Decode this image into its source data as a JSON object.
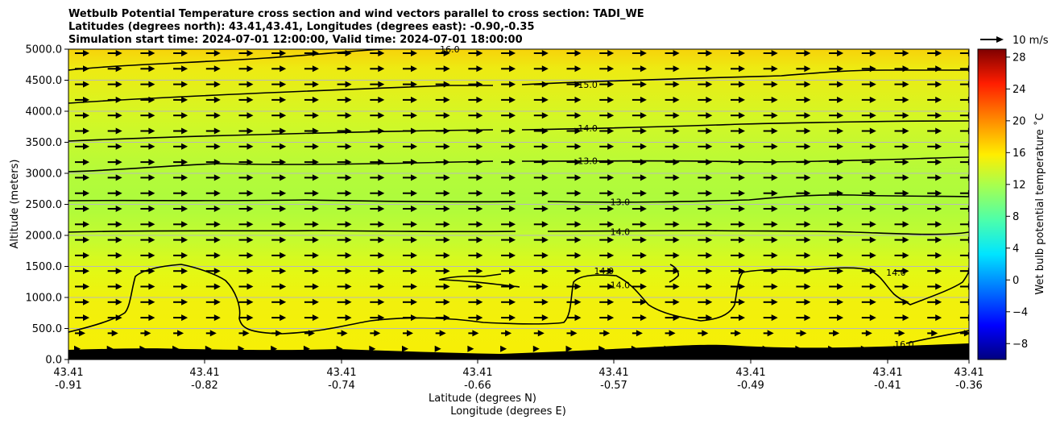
{
  "chart_data": {
    "type": "heatmap",
    "title_lines": [
      "Wetbulb Potential Temperature cross section and wind vectors parallel to cross section: TADI_WE",
      "Latitudes (degrees north): 43.41,43.41, Longitudes (degrees east): -0.90,-0.35",
      "Simulation start time: 2024-07-01 12:00:00, Valid time: 2024-07-01 18:00:00"
    ],
    "ylabel": "Altitude (meters)",
    "xlabel_lines": [
      "Latitude (degrees N)",
      "Longitude (degrees E)"
    ],
    "ylim": [
      0,
      5000
    ],
    "y_ticks": [
      "0.0",
      "500.0",
      "1000.0",
      "1500.0",
      "2000.0",
      "2500.0",
      "3000.0",
      "3500.0",
      "4000.0",
      "4500.0",
      "5000.0"
    ],
    "x_ticks": [
      {
        "lat": "43.41",
        "lon": "-0.91"
      },
      {
        "lat": "43.41",
        "lon": "-0.82"
      },
      {
        "lat": "43.41",
        "lon": "-0.74"
      },
      {
        "lat": "43.41",
        "lon": "-0.66"
      },
      {
        "lat": "43.41",
        "lon": "-0.57"
      },
      {
        "lat": "43.41",
        "lon": "-0.49"
      },
      {
        "lat": "43.41",
        "lon": "-0.41"
      },
      {
        "lat": "43.41",
        "lon": "-0.36"
      }
    ],
    "colorbar": {
      "label": "Wet bulb potential temperature ˚C",
      "range": [
        -10,
        29
      ],
      "ticks": [
        "−8",
        "−4",
        "0",
        "4",
        "8",
        "12",
        "16",
        "20",
        "24",
        "28"
      ],
      "colors": [
        "#00007f",
        "#0000ff",
        "#007fff",
        "#00ffff",
        "#7fff7f",
        "#ffff00",
        "#ff7f00",
        "#ff0000",
        "#7f0000"
      ]
    },
    "reference_vector": {
      "label": "10 m/s"
    },
    "contour_labels": [
      {
        "text": "16.0",
        "lon": -0.675,
        "alt": 5000
      },
      {
        "text": "15.0",
        "lon": -0.59,
        "alt": 4430
      },
      {
        "text": "14.0",
        "lon": -0.59,
        "alt": 3730
      },
      {
        "text": "13.0",
        "lon": -0.59,
        "alt": 3200
      },
      {
        "text": "13.0",
        "lon": -0.57,
        "alt": 2540
      },
      {
        "text": "14.0",
        "lon": -0.57,
        "alt": 2060
      },
      {
        "text": "14.0",
        "lon": -0.58,
        "alt": 1430
      },
      {
        "text": "14.0",
        "lon": -0.57,
        "alt": 1200
      },
      {
        "text": "14.0",
        "lon": -0.4,
        "alt": 1400
      },
      {
        "text": "16.0",
        "lon": -0.395,
        "alt": 250
      }
    ],
    "legend": "right colorbar",
    "grid": "horizontal"
  }
}
